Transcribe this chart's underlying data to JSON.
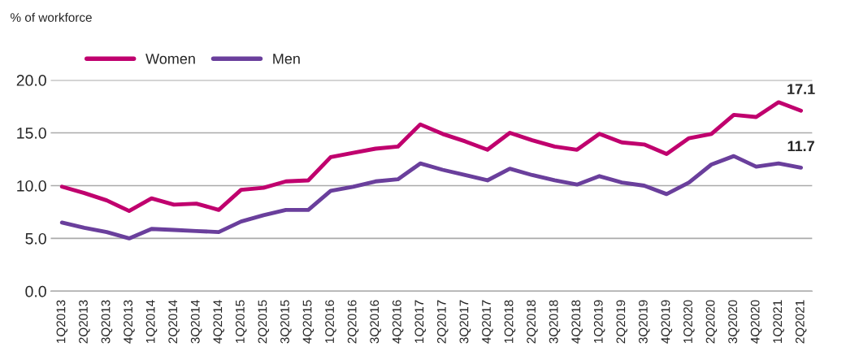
{
  "chart_data": {
    "type": "line",
    "subtitle": "% of workforce",
    "categories": [
      "1Q2013",
      "2Q2013",
      "3Q2013",
      "4Q2013",
      "1Q2014",
      "2Q2014",
      "3Q2014",
      "4Q2014",
      "1Q2015",
      "2Q2015",
      "3Q2015",
      "4Q2015",
      "1Q2016",
      "2Q2016",
      "3Q2016",
      "4Q2016",
      "1Q2017",
      "2Q2017",
      "3Q2017",
      "4Q2017",
      "1Q2018",
      "2Q2018",
      "3Q2018",
      "4Q2018",
      "1Q2019",
      "2Q2019",
      "3Q2019",
      "4Q2019",
      "1Q2020",
      "2Q2020",
      "3Q2020",
      "4Q2020",
      "1Q2021",
      "2Q2021"
    ],
    "series": [
      {
        "name": "Women",
        "color": "#c0006e",
        "values": [
          9.9,
          9.3,
          8.6,
          7.6,
          8.8,
          8.2,
          8.3,
          7.7,
          9.6,
          9.8,
          10.4,
          10.5,
          12.7,
          13.1,
          13.5,
          13.7,
          15.8,
          14.9,
          14.2,
          13.4,
          15.0,
          14.3,
          13.7,
          13.4,
          14.9,
          14.1,
          13.9,
          13.0,
          14.5,
          14.9,
          16.7,
          16.5,
          17.9,
          17.1
        ],
        "value_labels": [
          null,
          null,
          null,
          null,
          null,
          null,
          null,
          null,
          null,
          null,
          null,
          null,
          null,
          null,
          null,
          null,
          null,
          null,
          null,
          null,
          null,
          null,
          null,
          null,
          null,
          null,
          null,
          null,
          null,
          null,
          null,
          null,
          null,
          "17.1"
        ]
      },
      {
        "name": "Men",
        "color": "#6a3f9c",
        "values": [
          6.5,
          6.0,
          5.6,
          5.0,
          5.9,
          5.8,
          5.7,
          5.6,
          6.6,
          7.2,
          7.7,
          7.7,
          9.5,
          9.9,
          10.4,
          10.6,
          12.1,
          11.5,
          11.0,
          10.5,
          11.6,
          11.0,
          10.5,
          10.1,
          10.9,
          10.3,
          10.0,
          9.2,
          10.3,
          12.0,
          12.8,
          11.8,
          12.1,
          11.7
        ],
        "value_labels": [
          null,
          null,
          null,
          null,
          null,
          null,
          null,
          null,
          null,
          null,
          null,
          null,
          null,
          null,
          null,
          null,
          null,
          null,
          null,
          null,
          null,
          null,
          null,
          null,
          null,
          null,
          null,
          null,
          null,
          null,
          null,
          null,
          null,
          "11.7"
        ]
      }
    ],
    "ylim": [
      0,
      20
    ],
    "yticks": [
      {
        "value": 0,
        "label": "0.0"
      },
      {
        "value": 5,
        "label": "5.0"
      },
      {
        "value": 10,
        "label": "10.0"
      },
      {
        "value": 15,
        "label": "15.0"
      },
      {
        "value": 20,
        "label": "20.0"
      }
    ],
    "grid": "y",
    "legend": "top left",
    "marker": "none",
    "line_style": "solid"
  }
}
